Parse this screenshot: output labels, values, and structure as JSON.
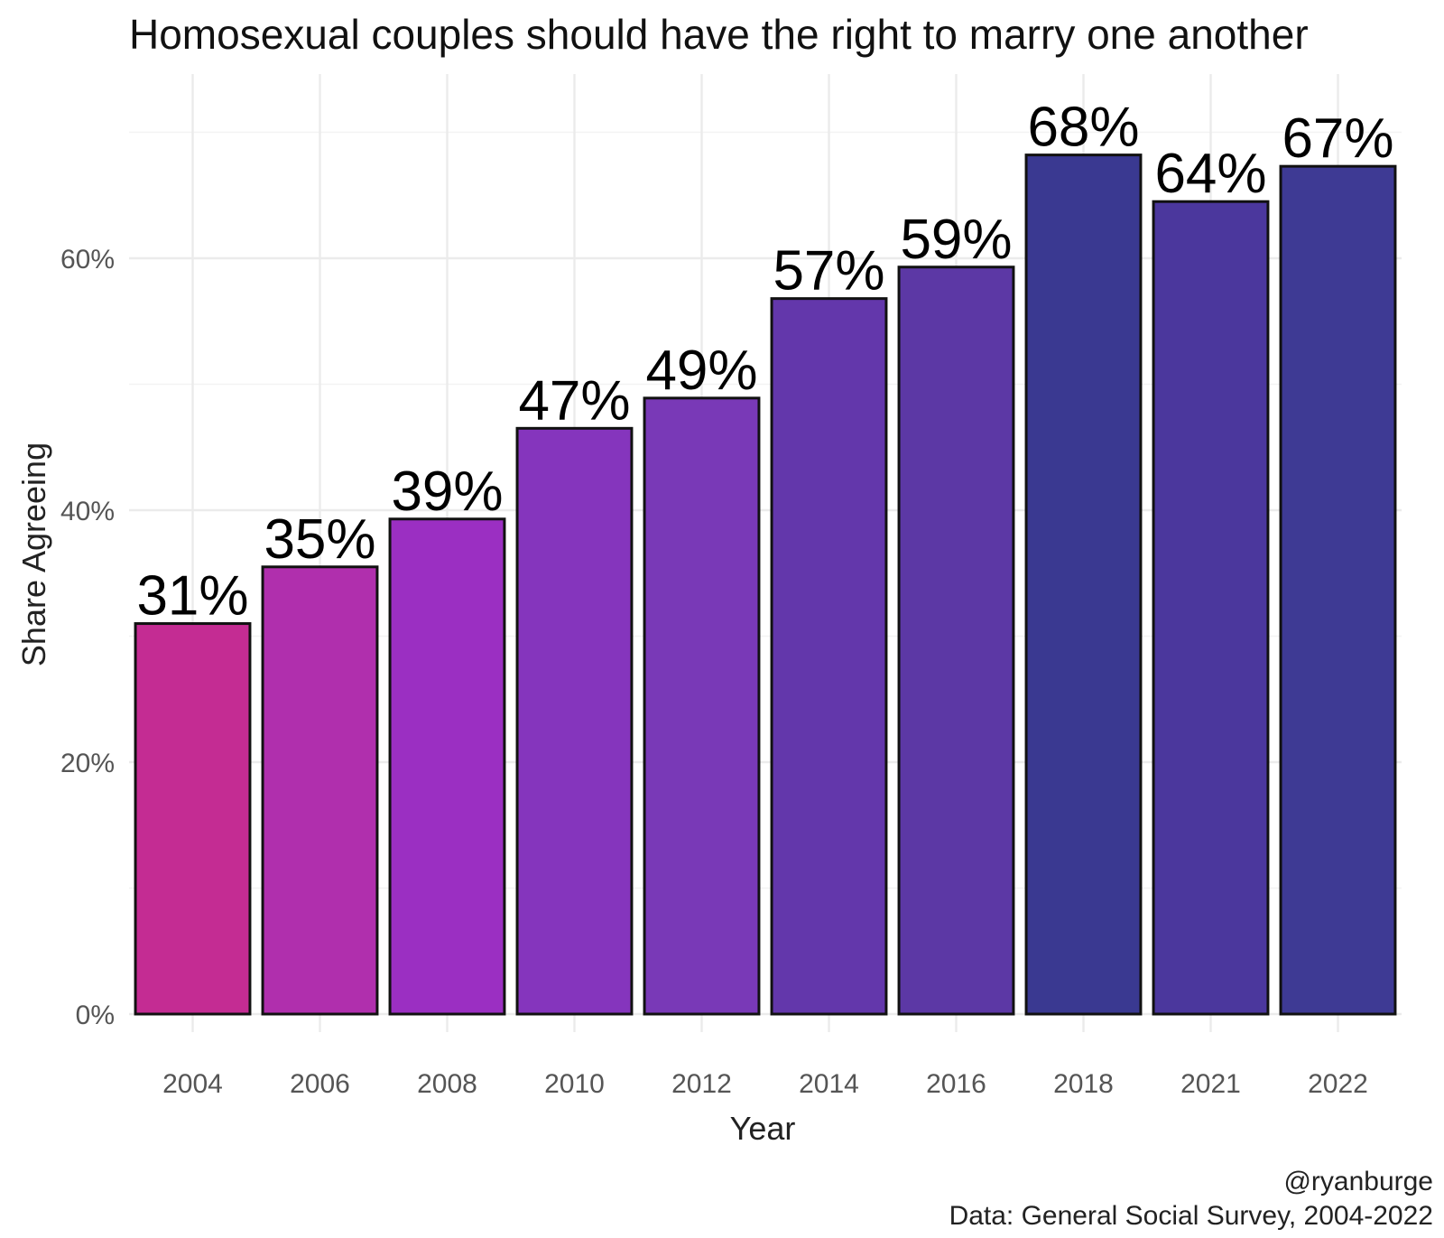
{
  "chart_data": {
    "type": "bar",
    "title": "Homosexual couples should have the right to marry one another",
    "xlabel": "Year",
    "ylabel": "Share Agreeing",
    "categories": [
      "2004",
      "2006",
      "2008",
      "2010",
      "2012",
      "2014",
      "2016",
      "2018",
      "2021",
      "2022"
    ],
    "values": [
      0.31,
      0.355,
      0.393,
      0.465,
      0.489,
      0.568,
      0.593,
      0.682,
      0.645,
      0.673
    ],
    "value_labels": [
      "31%",
      "35%",
      "39%",
      "47%",
      "49%",
      "57%",
      "59%",
      "68%",
      "64%",
      "67%"
    ],
    "bar_colors": [
      "#c42c93",
      "#b02fad",
      "#9b2fc2",
      "#8535bd",
      "#7939b7",
      "#6337ab",
      "#5c38a5",
      "#3a3991",
      "#4b379d",
      "#3e3a94"
    ],
    "yticks": [
      0,
      0.2,
      0.4,
      0.6
    ],
    "ytick_labels": [
      "0%",
      "20%",
      "40%",
      "60%"
    ],
    "ylim": [
      0,
      0.7
    ],
    "grid": true,
    "legend": "none"
  },
  "caption": {
    "line1": "@ryanburge",
    "line2": "Data: General Social Survey, 2004-2022"
  }
}
